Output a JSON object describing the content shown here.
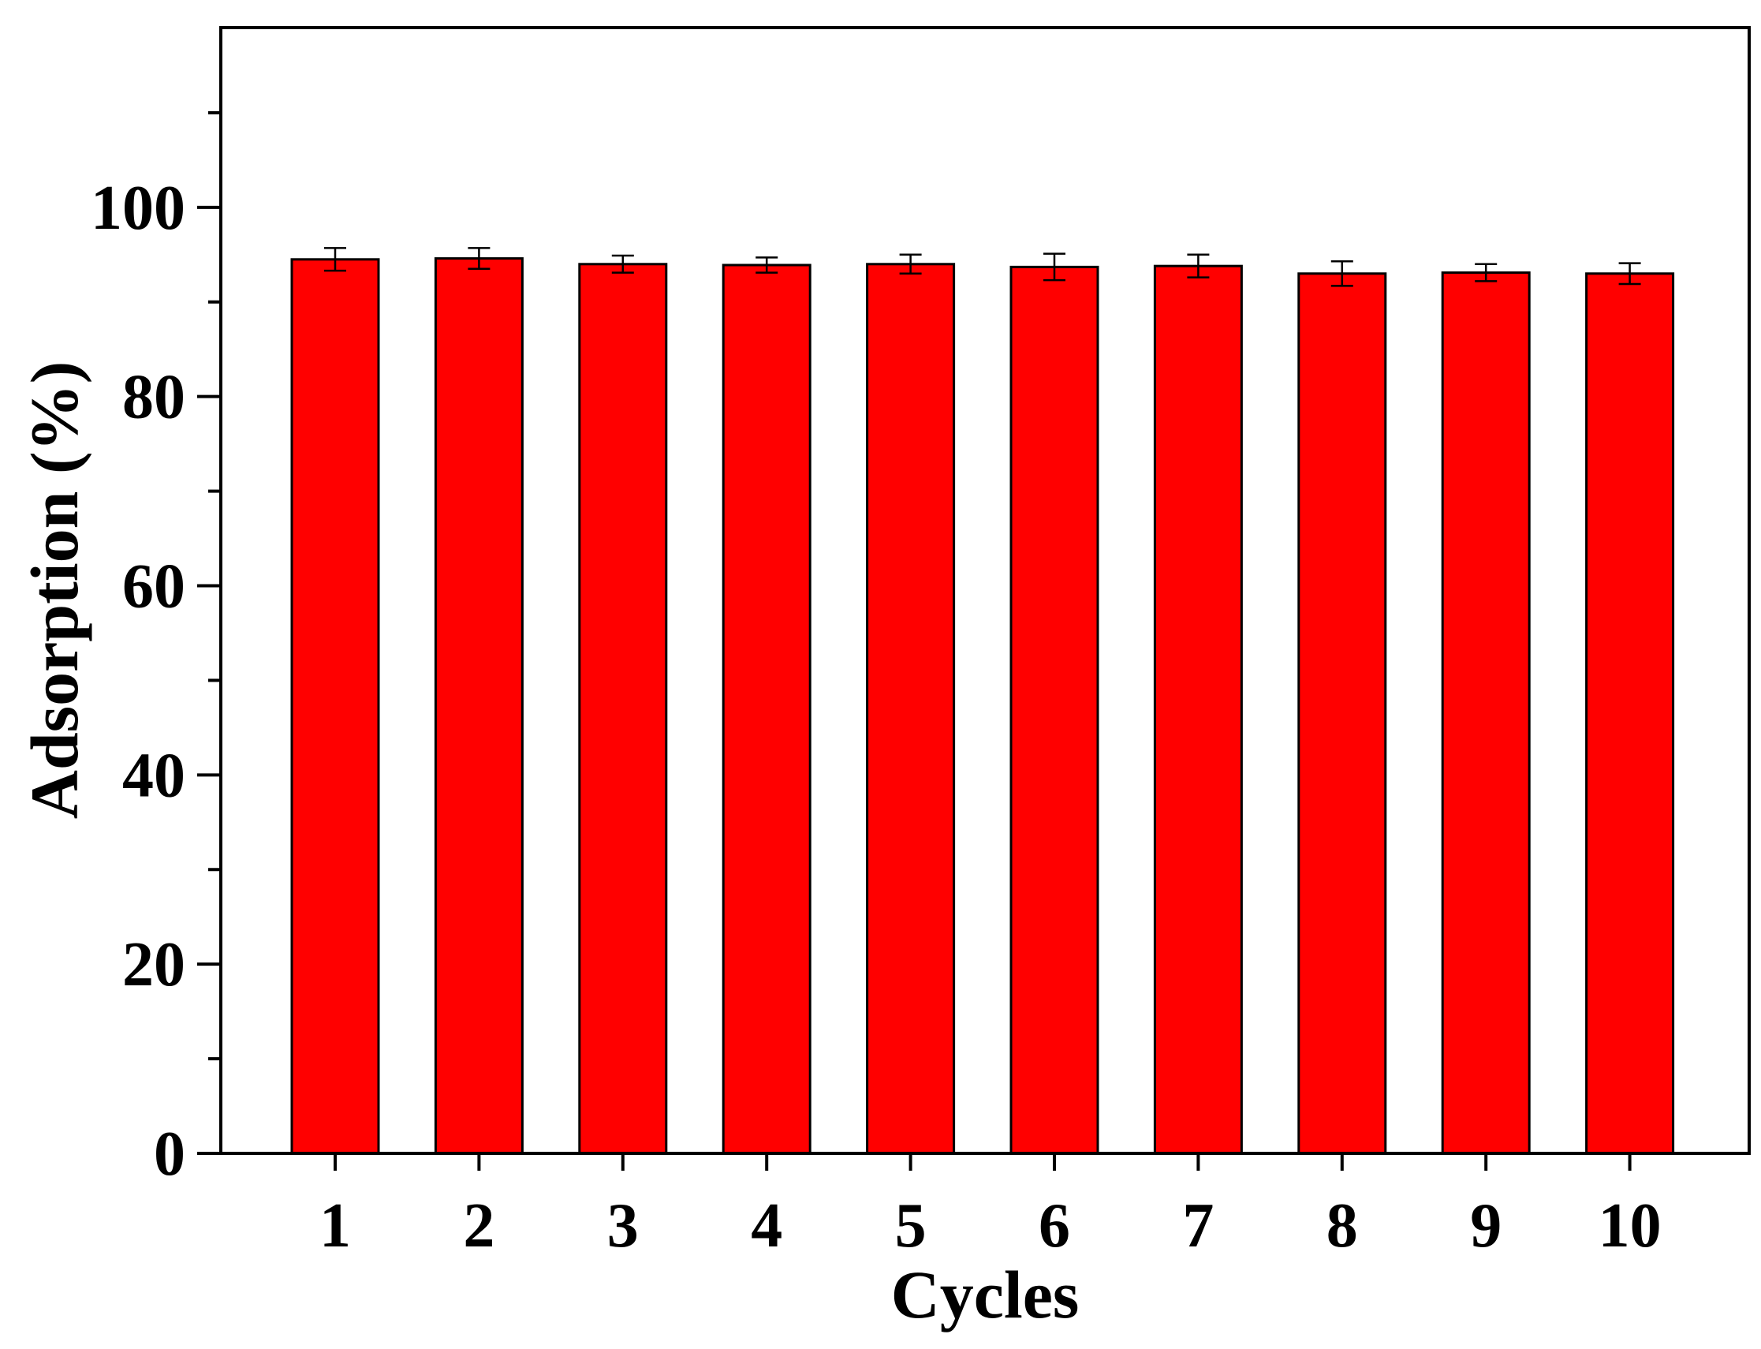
{
  "chart_data": {
    "type": "bar",
    "xlabel": "Cycles",
    "ylabel": "Adsorption (%)",
    "categories": [
      "1",
      "2",
      "3",
      "4",
      "5",
      "6",
      "7",
      "8",
      "9",
      "10"
    ],
    "values": [
      94.5,
      94.6,
      94.0,
      93.9,
      94.0,
      93.7,
      93.8,
      93.0,
      93.1,
      93.0
    ],
    "errors": [
      1.2,
      1.1,
      0.9,
      0.8,
      1.0,
      1.4,
      1.2,
      1.3,
      0.9,
      1.1
    ],
    "ylim": [
      0,
      119
    ],
    "yticks": [
      0,
      20,
      40,
      60,
      80,
      100
    ],
    "yticks_minor": [
      10,
      30,
      50,
      70,
      90,
      110
    ],
    "grid": false,
    "legend": "none",
    "bar_color": "#ff0000",
    "edge_color": "#000000"
  }
}
